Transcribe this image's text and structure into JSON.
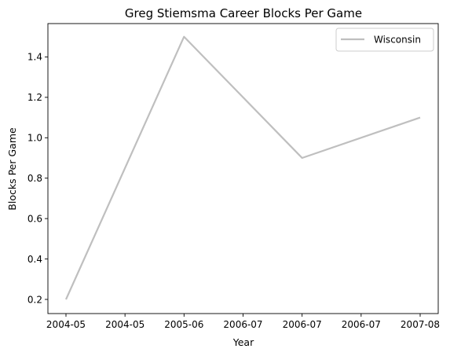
{
  "chart_data": {
    "type": "line",
    "title": "Greg Stiemsma Career Blocks Per Game",
    "xlabel": "Year",
    "ylabel": "Blocks Per Game",
    "x_tick_labels": [
      "2004-05",
      "2004-05",
      "2005-06",
      "2006-07",
      "2006-07",
      "2006-07",
      "2007-08"
    ],
    "categories": [
      "2004-05",
      "2005-06",
      "2006-07",
      "2007-08"
    ],
    "series": [
      {
        "name": "Wisconsin",
        "color": "#bfbfbf",
        "values": [
          0.2,
          1.5,
          0.9,
          1.1
        ]
      }
    ],
    "ylim": [
      0.13,
      1.565
    ],
    "y_ticks": [
      0.2,
      0.4,
      0.6,
      0.8,
      1.0,
      1.2,
      1.4
    ],
    "y_tick_labels": [
      "0.2",
      "0.4",
      "0.6",
      "0.8",
      "1.0",
      "1.2",
      "1.4"
    ],
    "grid": false,
    "legend_position": "top-right"
  }
}
